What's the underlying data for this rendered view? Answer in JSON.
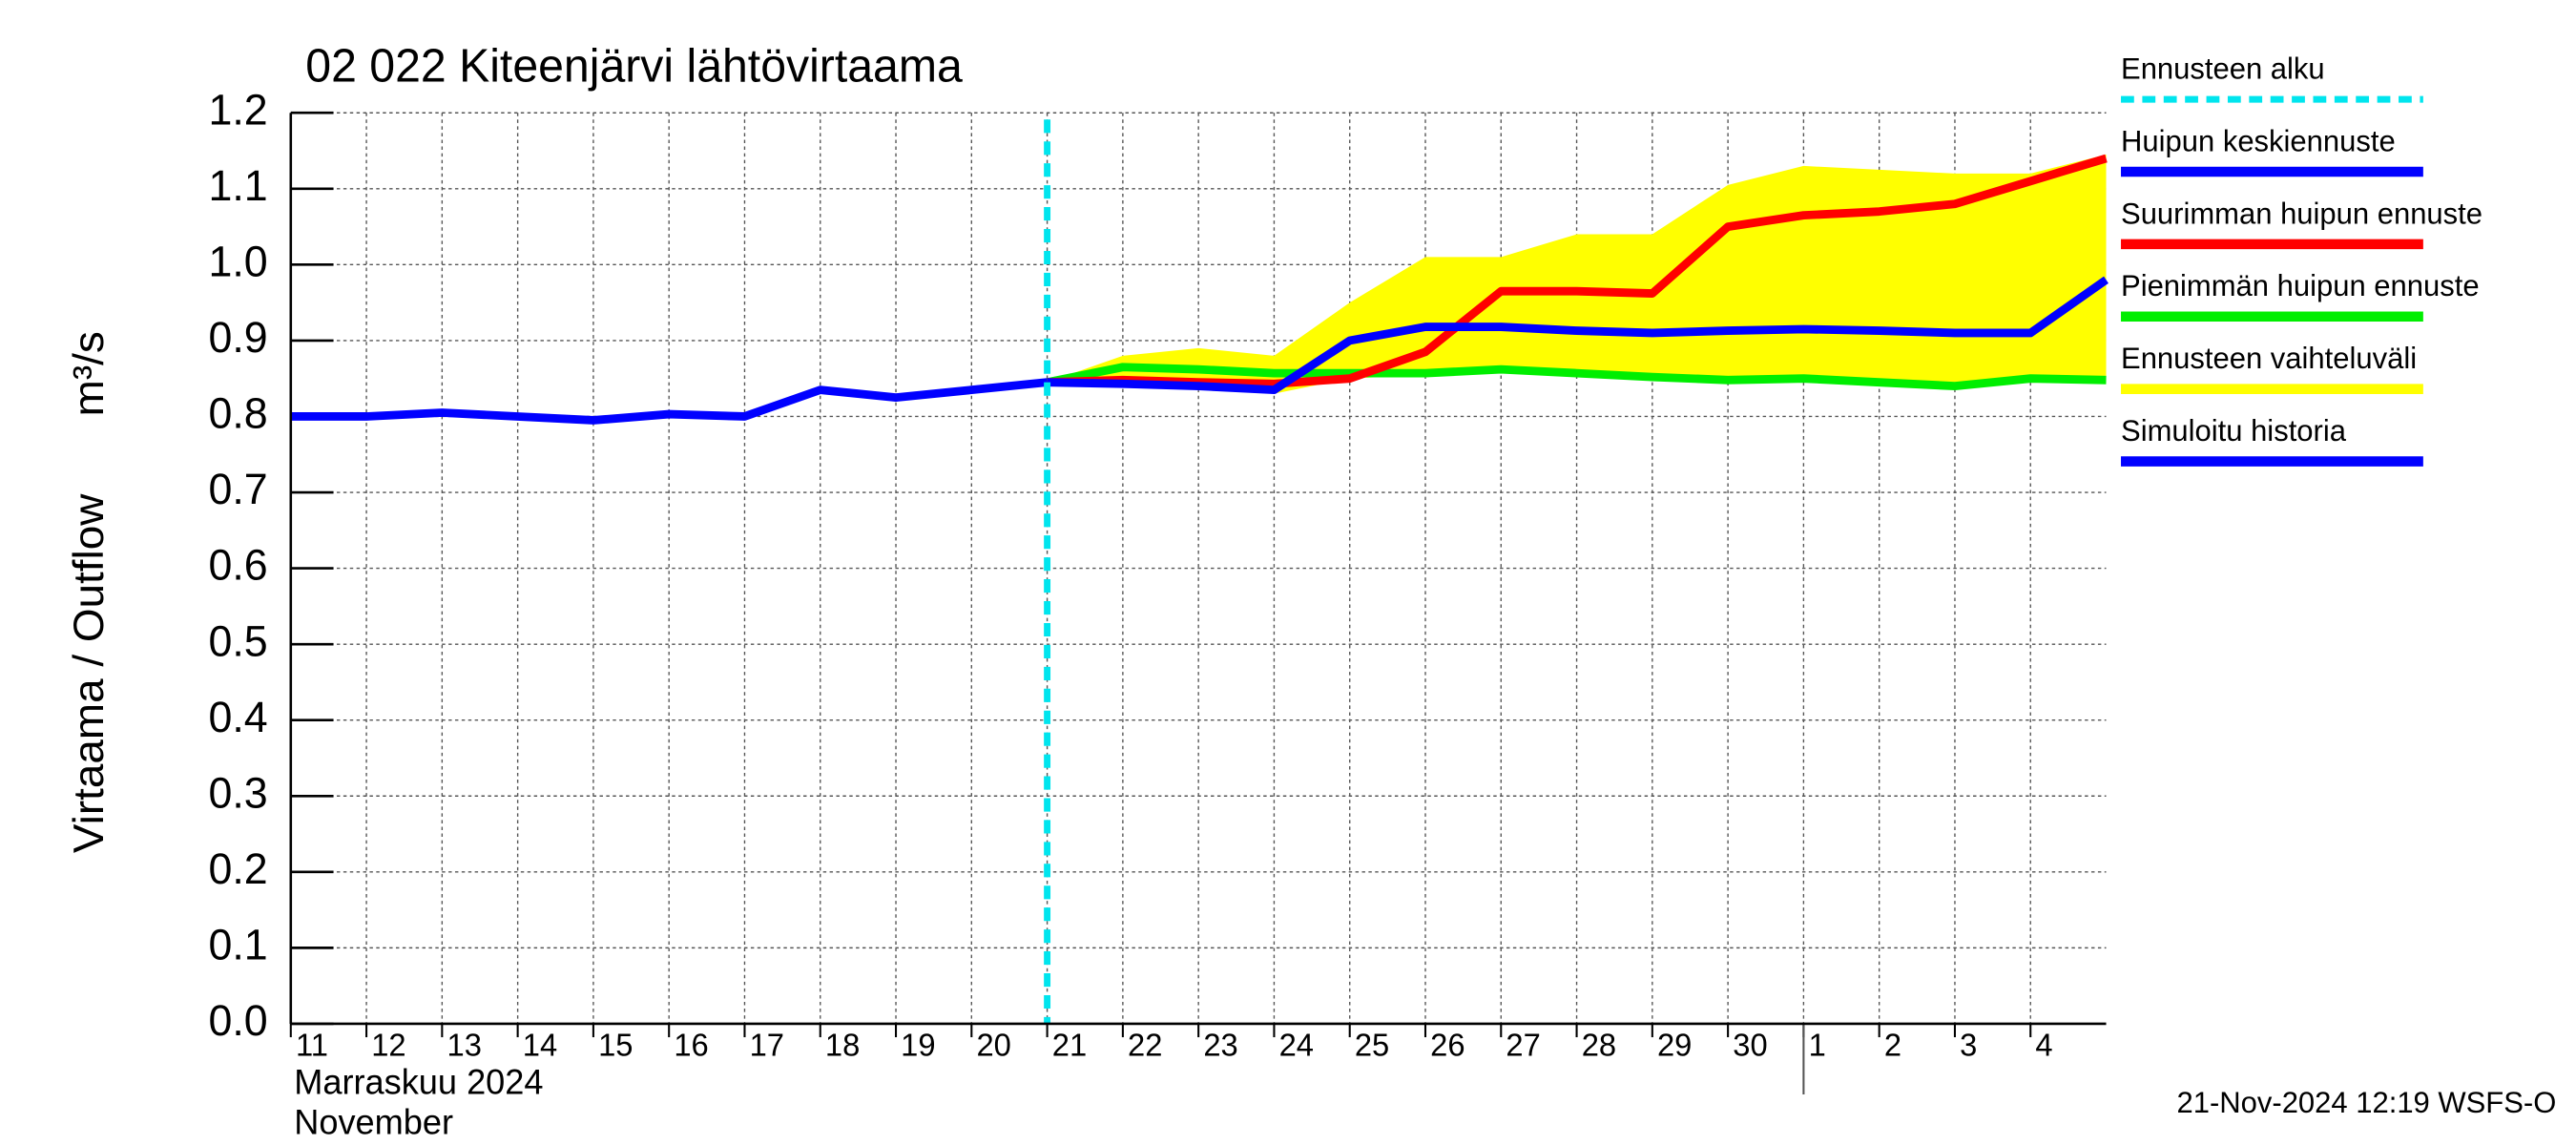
{
  "chart_data": {
    "type": "line",
    "title": "02 022 Kiteenjärvi lähtövirtaama",
    "y_label": "Virtaama / Outflow",
    "y_unit": "m³/s",
    "x_month_label_fi": "Marraskuu 2024",
    "x_month_label_en": "November",
    "timestamp": "21-Nov-2024 12:19 WSFS-O",
    "x": [
      "2024-11-11",
      "2024-11-12",
      "2024-11-13",
      "2024-11-14",
      "2024-11-15",
      "2024-11-16",
      "2024-11-17",
      "2024-11-18",
      "2024-11-19",
      "2024-11-20",
      "2024-11-21",
      "2024-11-22",
      "2024-11-23",
      "2024-11-24",
      "2024-11-25",
      "2024-11-26",
      "2024-11-27",
      "2024-11-28",
      "2024-11-29",
      "2024-11-30",
      "2024-12-01",
      "2024-12-02",
      "2024-12-03",
      "2024-12-04",
      "2024-12-05"
    ],
    "xlim": [
      "2024-11-11",
      "2024-12-05"
    ],
    "xticks": [
      {
        "value": "2024-11-11",
        "label": "11"
      },
      {
        "value": "2024-11-12",
        "label": "12"
      },
      {
        "value": "2024-11-13",
        "label": "13"
      },
      {
        "value": "2024-11-14",
        "label": "14"
      },
      {
        "value": "2024-11-15",
        "label": "15"
      },
      {
        "value": "2024-11-16",
        "label": "16"
      },
      {
        "value": "2024-11-17",
        "label": "17"
      },
      {
        "value": "2024-11-18",
        "label": "18"
      },
      {
        "value": "2024-11-19",
        "label": "19"
      },
      {
        "value": "2024-11-20",
        "label": "20"
      },
      {
        "value": "2024-11-21",
        "label": "21"
      },
      {
        "value": "2024-11-22",
        "label": "22"
      },
      {
        "value": "2024-11-23",
        "label": "23"
      },
      {
        "value": "2024-11-24",
        "label": "24"
      },
      {
        "value": "2024-11-25",
        "label": "25"
      },
      {
        "value": "2024-11-26",
        "label": "26"
      },
      {
        "value": "2024-11-27",
        "label": "27"
      },
      {
        "value": "2024-11-28",
        "label": "28"
      },
      {
        "value": "2024-11-29",
        "label": "29"
      },
      {
        "value": "2024-11-30",
        "label": "30"
      },
      {
        "value": "2024-12-01",
        "label": "1"
      },
      {
        "value": "2024-12-02",
        "label": "2"
      },
      {
        "value": "2024-12-03",
        "label": "3"
      },
      {
        "value": "2024-12-04",
        "label": "4"
      }
    ],
    "month_boundary": "2024-12-01",
    "ylim": [
      0,
      1.2
    ],
    "yticks": [
      {
        "value": 0,
        "label": "0.0"
      },
      0.1,
      0.2,
      0.3,
      0.4,
      0.5,
      0.6,
      0.7,
      0.8,
      0.9,
      {
        "value": 1,
        "label": "1.0"
      },
      1.1,
      1.2
    ],
    "grid": true,
    "forecast_start": {
      "name": "Ennusteen alku",
      "x": "2024-11-21",
      "color": "#00e5ee"
    },
    "series": [
      {
        "name": "Huipun keskiennuste",
        "color": "#0000ff",
        "values": [
          null,
          null,
          null,
          null,
          null,
          null,
          null,
          null,
          null,
          null,
          0.845,
          0.843,
          0.84,
          0.835,
          0.9,
          0.918,
          0.918,
          0.913,
          0.91,
          0.913,
          0.915,
          0.913,
          0.91,
          0.91,
          0.98
        ]
      },
      {
        "name": "Suurimman huipun ennuste",
        "color": "#ff0000",
        "values": [
          null,
          null,
          null,
          null,
          null,
          null,
          null,
          null,
          null,
          null,
          0.845,
          0.848,
          0.845,
          0.843,
          0.85,
          0.885,
          0.965,
          0.965,
          0.962,
          1.05,
          1.065,
          1.07,
          1.08,
          1.11,
          1.14
        ]
      },
      {
        "name": "Pienimmän huipun ennuste",
        "color": "#00ee00",
        "values": [
          null,
          null,
          null,
          null,
          null,
          null,
          null,
          null,
          null,
          null,
          0.845,
          0.865,
          0.862,
          0.857,
          0.857,
          0.857,
          0.862,
          0.857,
          0.852,
          0.848,
          0.85,
          0.845,
          0.84,
          0.85,
          0.848
        ]
      },
      {
        "name": "Ennusteen vaihteluväli",
        "color": "#ffff00",
        "band": true,
        "upper": [
          null,
          null,
          null,
          null,
          null,
          null,
          null,
          null,
          null,
          null,
          0.845,
          0.88,
          0.89,
          0.88,
          0.95,
          1.01,
          1.01,
          1.04,
          1.04,
          1.105,
          1.13,
          1.125,
          1.12,
          1.12,
          1.145
        ],
        "lower": [
          null,
          null,
          null,
          null,
          null,
          null,
          null,
          null,
          null,
          null,
          0.845,
          0.84,
          0.835,
          0.83,
          0.85,
          0.855,
          0.86,
          0.855,
          0.85,
          0.845,
          0.848,
          0.843,
          0.838,
          0.848,
          0.845
        ]
      },
      {
        "name": "Simuloitu historia",
        "color": "#0000ff",
        "values": [
          0.8,
          0.8,
          0.805,
          0.8,
          0.795,
          0.803,
          0.8,
          0.835,
          0.825,
          0.835,
          0.845,
          null,
          null,
          null,
          null,
          null,
          null,
          null,
          null,
          null,
          null,
          null,
          null,
          null,
          null
        ]
      }
    ]
  }
}
